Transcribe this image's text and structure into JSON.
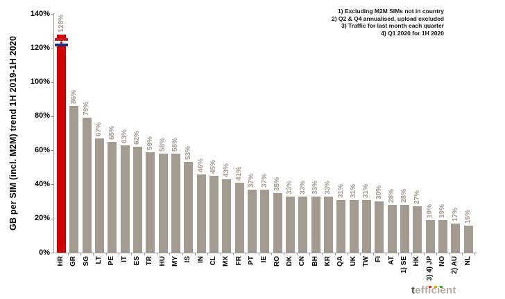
{
  "chart_data": {
    "type": "bar",
    "title": "",
    "ylabel": "GB per SIM (incl. M2M) trend 1H 2019-1H 2020",
    "xlabel": "",
    "ylim": [
      0,
      140
    ],
    "ytick_step": 20,
    "ytick_labels": [
      "0%",
      "20%",
      "40%",
      "60%",
      "80%",
      "100%",
      "120%",
      "140%"
    ],
    "grid": false,
    "legend_position": "none",
    "categories": [
      "HR",
      "GR",
      "SG",
      "LT",
      "PE",
      "IT",
      "ES",
      "TR",
      "HU",
      "MY",
      "IS",
      "IN",
      "CL",
      "MX",
      "FR",
      "PT",
      "IE",
      "RO",
      "DK",
      "CN",
      "BH",
      "KR",
      "QA",
      "UK",
      "TW",
      "FI",
      "AT",
      "1) SE",
      "HK",
      "3) 4) JP",
      "NO",
      "2) AU",
      "NL"
    ],
    "values": [
      128,
      86,
      79,
      67,
      65,
      63,
      62,
      59,
      58,
      58,
      53,
      46,
      45,
      43,
      41,
      37,
      37,
      35,
      33,
      33,
      33,
      33,
      31,
      31,
      31,
      30,
      28,
      28,
      27,
      19,
      19,
      17,
      16
    ],
    "value_suffix": "%",
    "bar_color": "#a49b90",
    "value_label_color": "#a49b90",
    "highlight": {
      "category": "HR",
      "color": "#cc0000",
      "flag_icon": "croatia-flag",
      "flag_colors": {
        "top": "#d01a23",
        "middle": "#ffffff",
        "bottom": "#1b2e83"
      }
    }
  },
  "notes": {
    "lines": [
      "1) Excluding M2M SIMs not in country",
      "2) Q2 & Q4 annualised, upload excluded",
      "3) Traffic for last month each quarter",
      "4) Q1 2020 for 1H 2020"
    ]
  },
  "branding": {
    "logo_text": "tefficient",
    "logo_first_letter": "t",
    "logo_rest": "efficient",
    "dot_colors": [
      "#e63900",
      "#f5a300",
      "#3fa535"
    ]
  }
}
